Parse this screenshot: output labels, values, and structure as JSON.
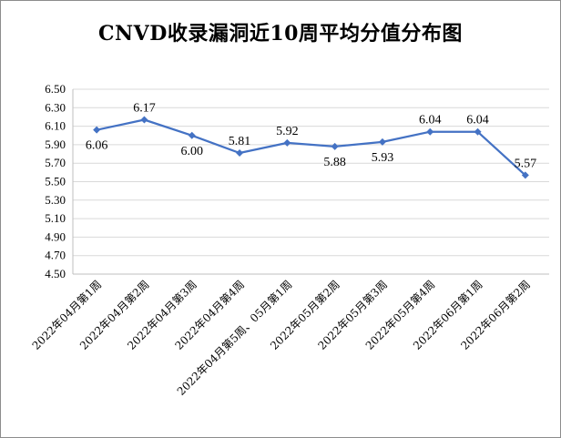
{
  "chart_data": {
    "type": "line",
    "title": "CNVD收录漏洞近10周平均分值分布图",
    "categories": [
      "2022年04月第1周",
      "2022年04月第2周",
      "2022年04月第3周",
      "2022年04月第4周",
      "2022年04月第5周、05月第1周",
      "2022年05月第2周",
      "2022年05月第3周",
      "2022年05月第4周",
      "2022年06月第1周",
      "2022年06月第2周"
    ],
    "values": [
      6.06,
      6.17,
      6.0,
      5.81,
      5.92,
      5.88,
      5.93,
      6.04,
      6.04,
      5.57
    ],
    "value_labels": [
      "6.06",
      "6.17",
      "6.00",
      "5.81",
      "5.92",
      "5.88",
      "5.93",
      "6.04",
      "6.04",
      "5.57"
    ],
    "yticks": [
      "4.50",
      "4.70",
      "4.90",
      "5.10",
      "5.30",
      "5.50",
      "5.70",
      "5.90",
      "6.10",
      "6.30",
      "6.50"
    ],
    "ylim": [
      4.5,
      6.5
    ],
    "grid": true,
    "line_color": "#4472c4",
    "grid_color": "#d9d9d9"
  }
}
